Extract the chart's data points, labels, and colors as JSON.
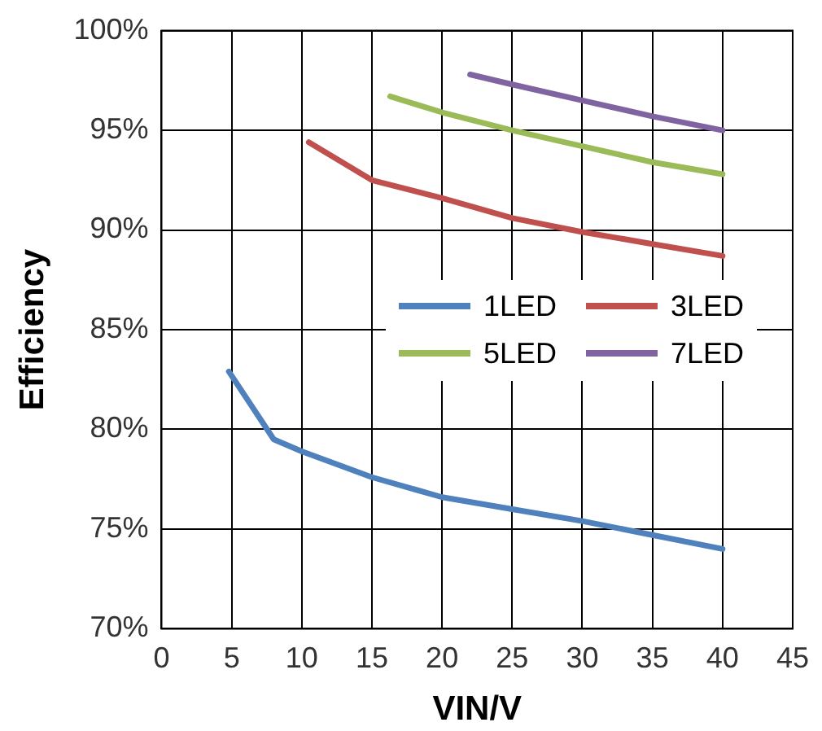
{
  "chart_data": {
    "type": "line",
    "xlabel": "VIN/V",
    "ylabel": "Efficiency",
    "xlim": [
      0,
      45
    ],
    "xticks": [
      0,
      5,
      10,
      15,
      20,
      25,
      30,
      35,
      40,
      45
    ],
    "ylim": [
      70,
      100
    ],
    "yticks": [
      {
        "value": 70,
        "label": "70%"
      },
      {
        "value": 75,
        "label": "75%"
      },
      {
        "value": 80,
        "label": "80%"
      },
      {
        "value": 85,
        "label": "85%"
      },
      {
        "value": 90,
        "label": "90%"
      },
      {
        "value": 95,
        "label": "95%"
      },
      {
        "value": 100,
        "label": "100%"
      }
    ],
    "grid": true,
    "legend": "right",
    "marker": "none",
    "line_style": "solid",
    "series": [
      {
        "name": "1LED",
        "color": "#4f81bd",
        "x": [
          4.8,
          8,
          10,
          15,
          20,
          25,
          30,
          35,
          40
        ],
        "values": [
          82.9,
          79.5,
          78.9,
          77.6,
          76.6,
          76.0,
          75.4,
          74.7,
          74.0
        ]
      },
      {
        "name": "3LED",
        "color": "#c0504d",
        "x": [
          10.5,
          15,
          20,
          25,
          30,
          35,
          40
        ],
        "values": [
          94.4,
          92.5,
          91.6,
          90.6,
          89.9,
          89.3,
          88.7
        ]
      },
      {
        "name": "5LED",
        "color": "#9bbb59",
        "x": [
          16.3,
          20,
          25,
          30,
          35,
          40
        ],
        "values": [
          96.7,
          95.9,
          95.0,
          94.2,
          93.4,
          92.8
        ]
      },
      {
        "name": "7LED",
        "color": "#8064a2",
        "x": [
          22,
          25,
          30,
          35,
          40
        ],
        "values": [
          97.8,
          97.3,
          96.5,
          95.7,
          95.0
        ]
      }
    ]
  }
}
